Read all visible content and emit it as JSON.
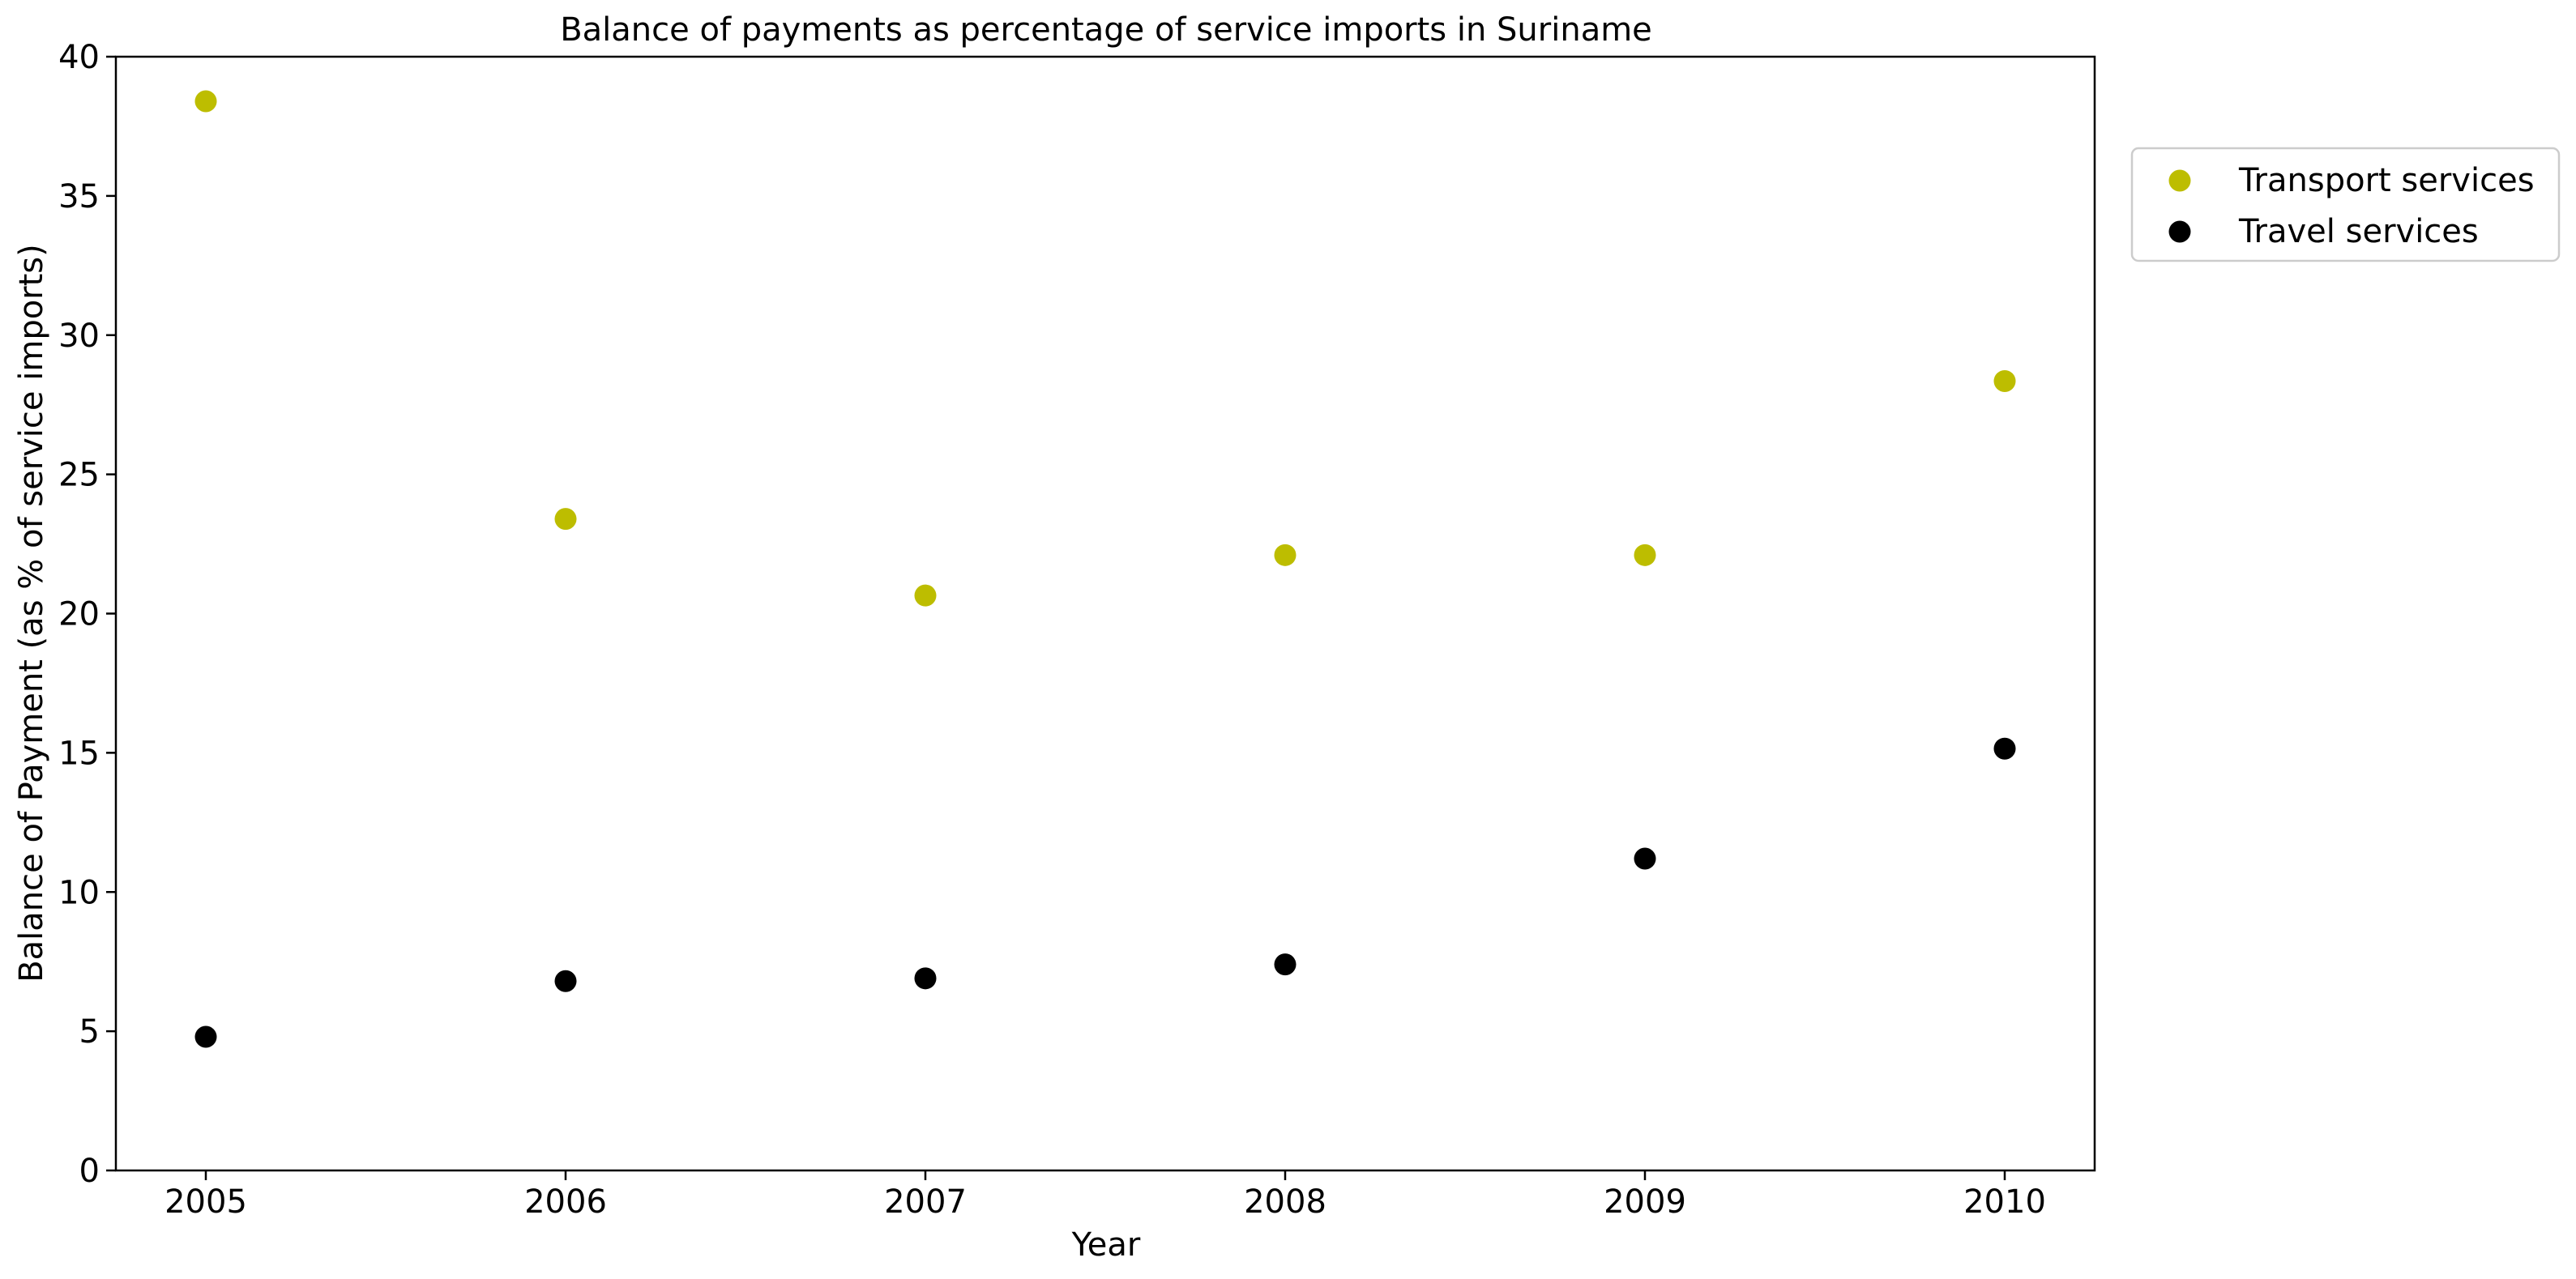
{
  "chart_data": {
    "type": "scatter",
    "title": "Balance of payments as percentage of service imports in Suriname",
    "xlabel": "Year",
    "ylabel": "Balance of Payment (as % of service imports)",
    "x": [
      2005,
      2006,
      2007,
      2008,
      2009,
      2010
    ],
    "xticks": [
      "2005",
      "2006",
      "2007",
      "2008",
      "2009",
      "2010"
    ],
    "xlim": [
      2004.75,
      2010.25
    ],
    "ylim": [
      0,
      40
    ],
    "yticks": [
      "0",
      "5",
      "10",
      "15",
      "20",
      "25",
      "30",
      "35",
      "40"
    ],
    "grid": false,
    "legend_position": "outside top-right",
    "series": [
      {
        "name": "Transport services",
        "color": "#bdbd00",
        "values": [
          38.4,
          23.4,
          20.65,
          22.1,
          22.1,
          28.35
        ]
      },
      {
        "name": "Travel services",
        "color": "#000000",
        "values": [
          4.8,
          6.8,
          6.9,
          7.4,
          11.2,
          15.15
        ]
      }
    ]
  }
}
